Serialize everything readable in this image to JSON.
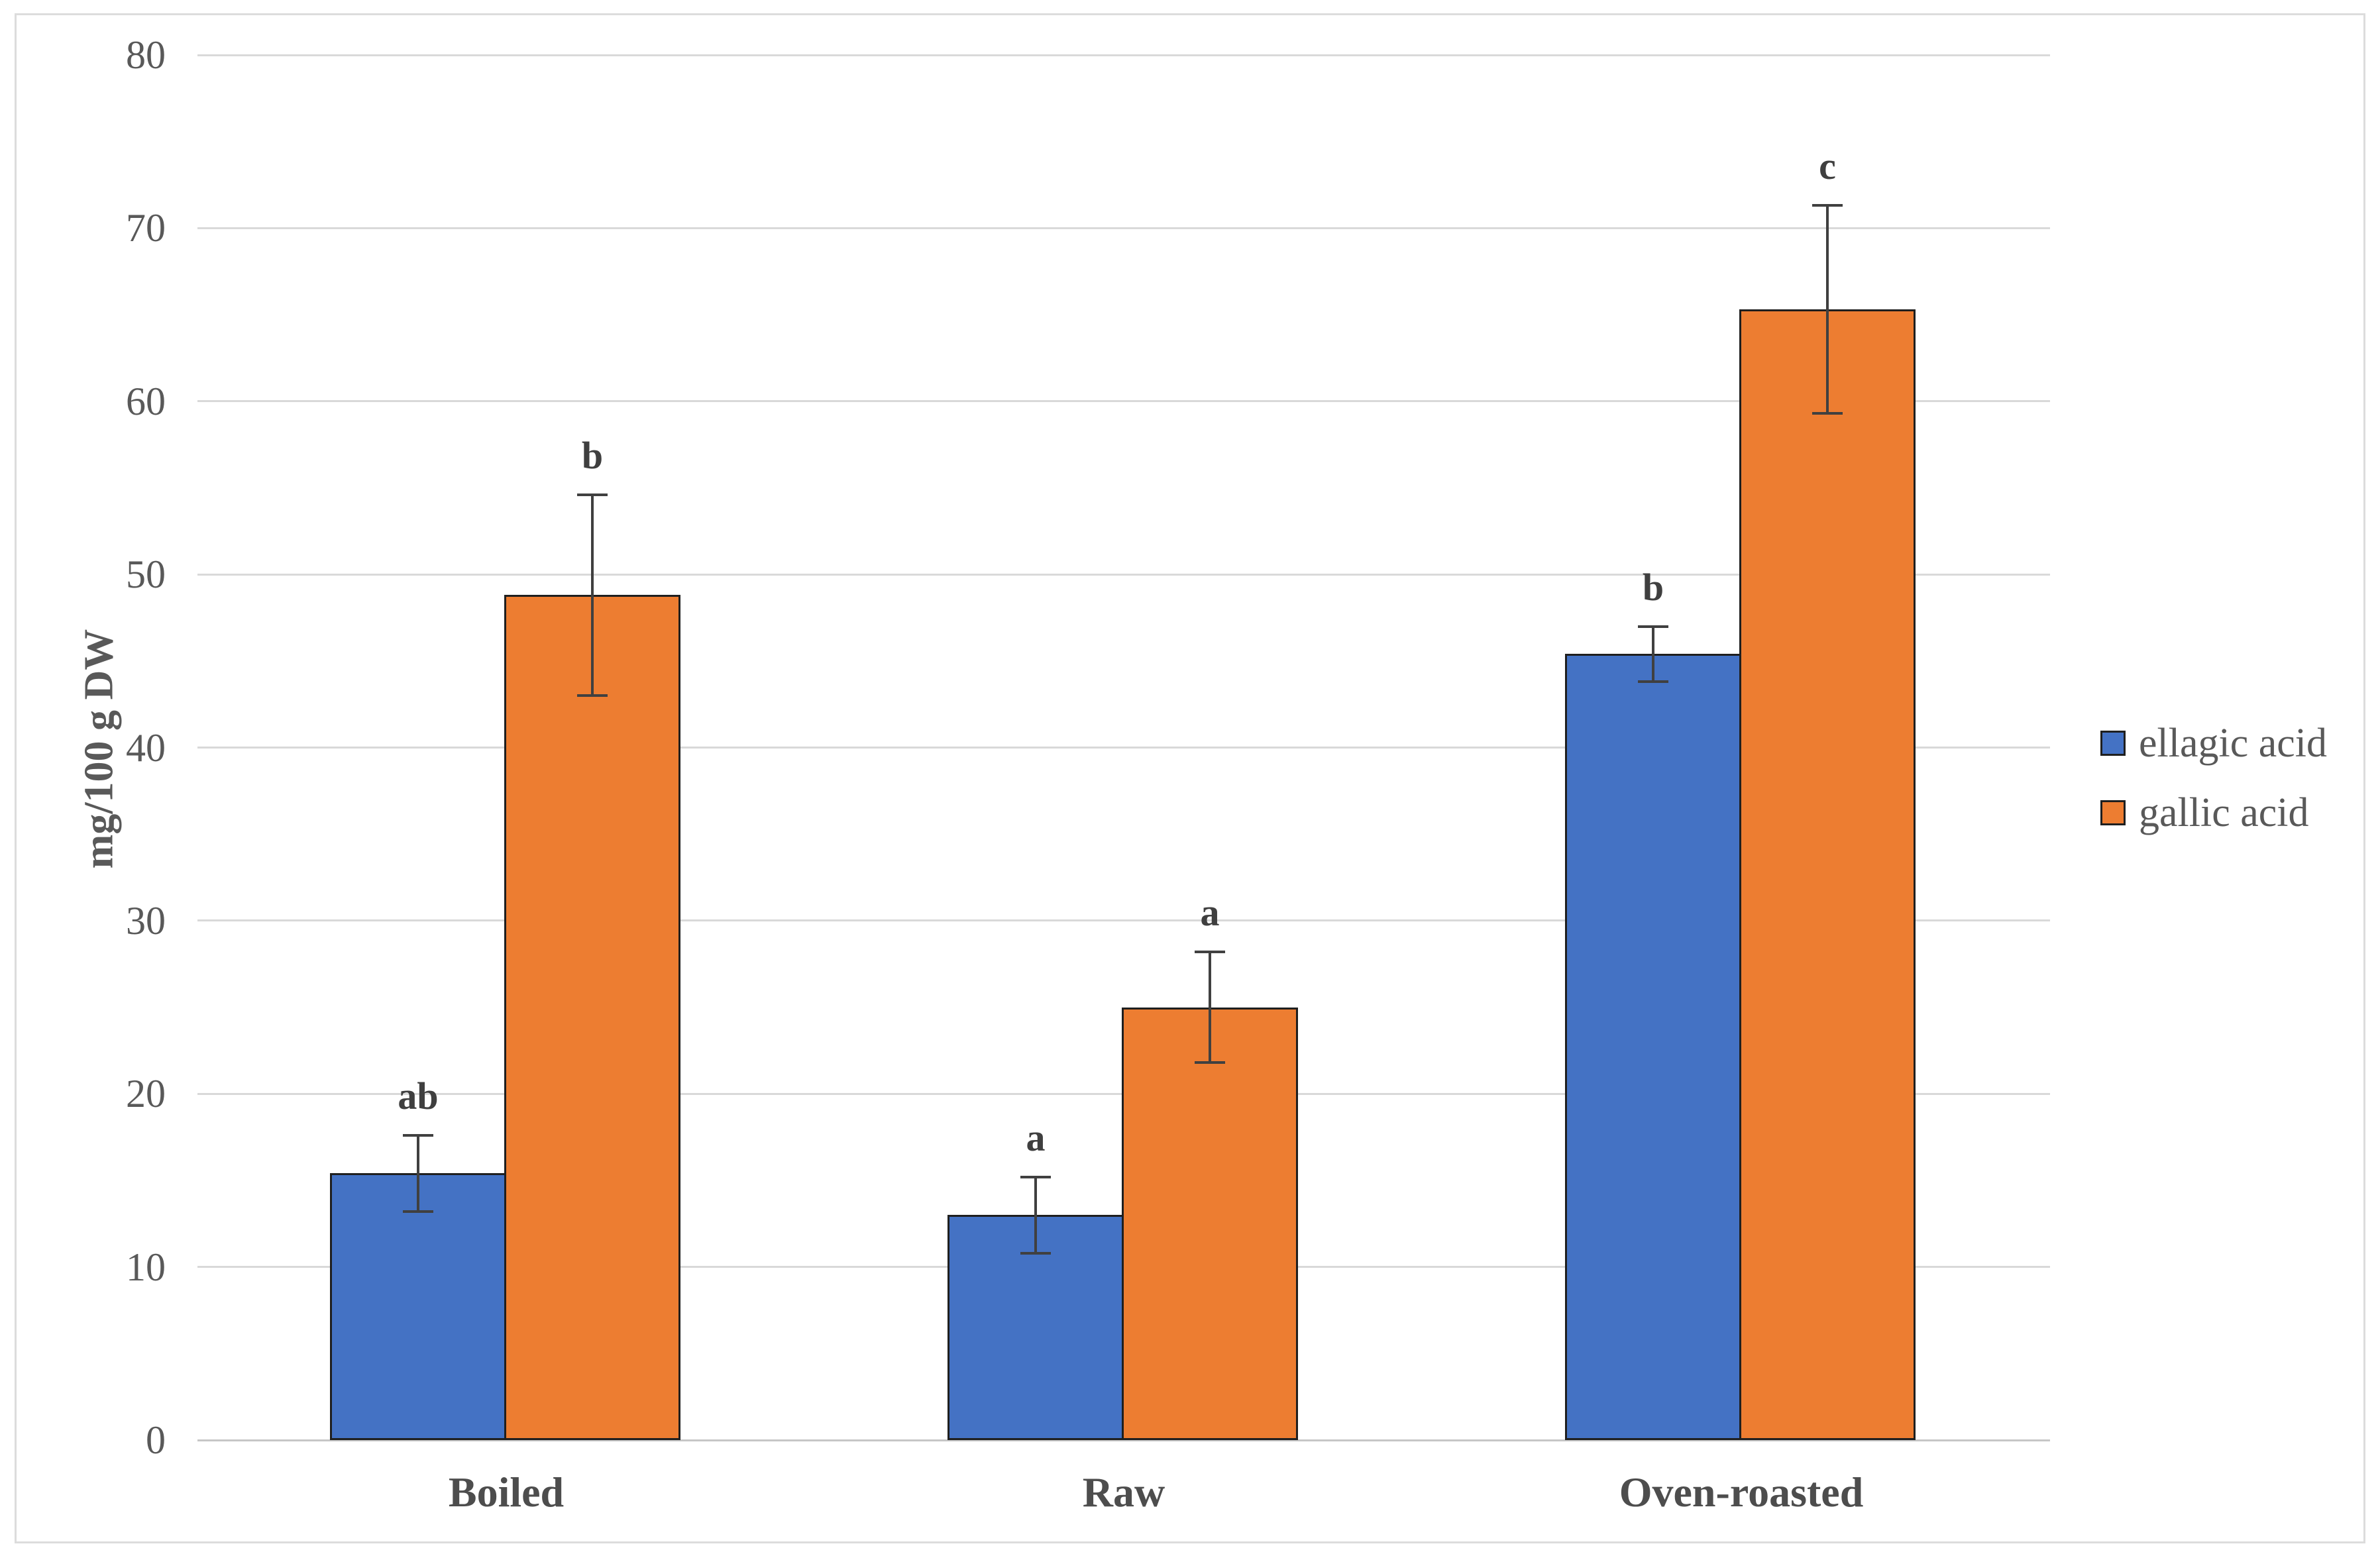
{
  "chart_data": {
    "type": "bar",
    "title": "",
    "ylabel": "mg/100 g DW",
    "xlabel": "",
    "categories": [
      "Boiled",
      "Raw",
      "Oven-roasted"
    ],
    "series": [
      {
        "name": "ellagic acid",
        "color": "#4472C4",
        "values": [
          15.4,
          13.0,
          45.4
        ],
        "errors": [
          2.2,
          2.2,
          1.6
        ],
        "sig_letters": [
          "ab",
          "a",
          "b"
        ]
      },
      {
        "name": "gallic acid",
        "color": "#ED7D31",
        "values": [
          48.8,
          25.0,
          65.3
        ],
        "errors": [
          5.8,
          3.2,
          6.0
        ],
        "sig_letters": [
          "b",
          "a",
          "c"
        ]
      }
    ],
    "ylim": [
      0,
      80
    ],
    "ytick_step": 10,
    "y_ticks": [
      0,
      10,
      20,
      30,
      40,
      50,
      60,
      70,
      80
    ],
    "grid": true,
    "legend_position": "right-middle"
  },
  "colors": {
    "background": "#FFFFFF",
    "frame_border": "#DCDCDC",
    "gridline": "#D9D9D9",
    "axis_line": "#C6C6C6",
    "bar_border": "#1F1F1F",
    "error_bar": "#404040",
    "tick_text": "#595959",
    "category_text": "#4D4D4D",
    "letter_text": "#3F3F3F",
    "legend_text": "#595959",
    "axis_title_text": "#595959"
  }
}
